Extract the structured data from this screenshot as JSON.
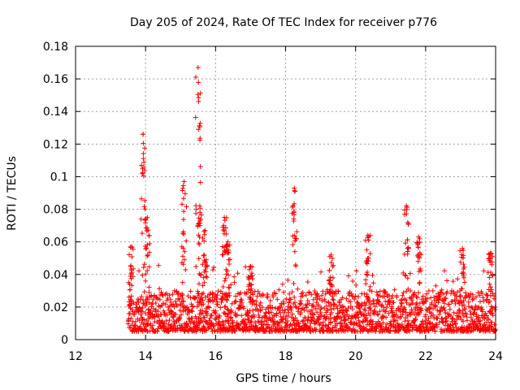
{
  "chart_data": {
    "type": "scatter",
    "title": "Day 205 of 2024, Rate Of TEC Index for receiver p776",
    "xlabel": "GPS time / hours",
    "ylabel": "ROTI / TECUs",
    "xlim": [
      12,
      24
    ],
    "ylim": [
      0,
      0.18
    ],
    "xticks": [
      "12",
      "14",
      "16",
      "18",
      "20",
      "22",
      "24"
    ],
    "yticks": [
      "0",
      "0.02",
      "0.04",
      "0.06",
      "0.08",
      "0.1",
      "0.12",
      "0.14",
      "0.16",
      "0.18"
    ],
    "grid": true,
    "marker": "+",
    "color": "#ff0000",
    "data_start_hour": 13.5,
    "data_end_hour": 24,
    "baseline_range": [
      0.005,
      0.03
    ],
    "spikes": [
      {
        "x": 13.58,
        "peak": 0.057
      },
      {
        "x": 13.93,
        "peak": 0.126
      },
      {
        "x": 14.05,
        "peak": 0.075
      },
      {
        "x": 15.1,
        "peak": 0.097
      },
      {
        "x": 15.5,
        "peak": 0.167
      },
      {
        "x": 15.55,
        "peak": 0.082
      },
      {
        "x": 15.7,
        "peak": 0.067
      },
      {
        "x": 16.25,
        "peak": 0.075
      },
      {
        "x": 16.35,
        "peak": 0.06
      },
      {
        "x": 17.0,
        "peak": 0.045
      },
      {
        "x": 18.25,
        "peak": 0.093
      },
      {
        "x": 19.3,
        "peak": 0.052
      },
      {
        "x": 20.35,
        "peak": 0.064
      },
      {
        "x": 21.45,
        "peak": 0.082
      },
      {
        "x": 21.8,
        "peak": 0.063
      },
      {
        "x": 23.05,
        "peak": 0.056
      },
      {
        "x": 23.85,
        "peak": 0.053
      }
    ]
  }
}
